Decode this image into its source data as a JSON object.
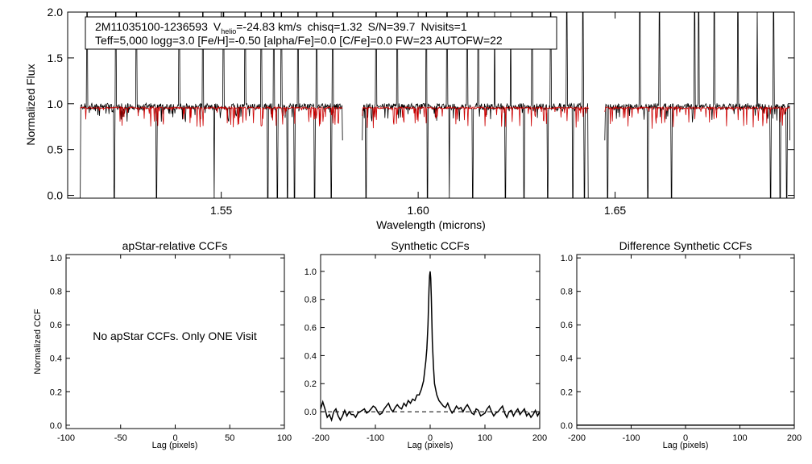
{
  "chart_data": [
    {
      "type": "line",
      "title": "",
      "header_line1": {
        "star": "2M11035100-1236593",
        "v_symbol": "V",
        "v_sub": "helio",
        "v_value": "=-24.83 km/s",
        "chisq": "chisq=1.32",
        "sn": "S/N=39.7",
        "nvisits": "Nvisits=1"
      },
      "header_line2": "Teff=5,000 logg=3.0 [Fe/H]=-0.50 [alpha/Fe]=0.0 [C/Fe]=0.0 FW=23 AUTOFW=22",
      "xlabel": "Wavelength (microns)",
      "ylabel": "Normalized Flux",
      "xlim": [
        1.511,
        1.6955
      ],
      "ylim": [
        -0.03,
        2.0
      ],
      "x_ticks": [
        {
          "value": 1.55,
          "label": "1.55"
        },
        {
          "value": 1.6,
          "label": "1.60"
        },
        {
          "value": 1.65,
          "label": "1.65"
        }
      ],
      "y_ticks": [
        {
          "value": 0.0,
          "label": "0.0"
        },
        {
          "value": 0.5,
          "label": "0.5"
        },
        {
          "value": 1.0,
          "label": "1.0"
        },
        {
          "value": 1.5,
          "label": "1.5"
        },
        {
          "value": 2.0,
          "label": "2.0"
        }
      ],
      "chips": [
        [
          1.5142,
          1.5808
        ],
        [
          1.5858,
          1.6433
        ],
        [
          1.6474,
          1.6944
        ]
      ],
      "series": [
        {
          "role": "observed",
          "color": "#000000",
          "continuum": 0.97
        },
        {
          "role": "model",
          "color": "#cc0000",
          "continuum": 0.955
        }
      ],
      "spikes": [
        1.5159,
        1.5232,
        1.5285,
        1.5335,
        1.5393,
        1.5453,
        1.5506,
        1.5561,
        1.5601,
        1.5633,
        1.5653,
        1.5695,
        1.5742,
        1.5783,
        1.5893,
        1.5947,
        1.6021,
        1.6073,
        1.6124,
        1.6153,
        1.6194,
        1.6235,
        1.6289,
        1.6336,
        1.6377,
        1.6418,
        1.6563,
        1.6613,
        1.6702,
        1.6712,
        1.6752,
        1.6812,
        1.6861,
        1.6903
      ],
      "dips": [
        1.5142,
        1.5228,
        1.5336,
        1.5482,
        1.5618,
        1.5642,
        1.5668,
        1.5686,
        1.5737,
        1.5779,
        1.5868,
        1.6024,
        1.6079,
        1.6138,
        1.6221,
        1.6269,
        1.6329,
        1.6393,
        1.6422,
        1.6432,
        1.6481,
        1.6583,
        1.6643,
        1.6895,
        1.6919,
        1.6936
      ]
    },
    {
      "type": "line",
      "title": "apStar-relative CCFs",
      "xlabel": "Lag (pixels)",
      "ylabel": "Normalized CCF",
      "xlim": [
        -100,
        100
      ],
      "ylim": [
        -0.02,
        1.02
      ],
      "x_ticks": [
        {
          "value": -100,
          "label": "-100"
        },
        {
          "value": -50,
          "label": "-50"
        },
        {
          "value": 0,
          "label": "0"
        },
        {
          "value": 50,
          "label": "50"
        },
        {
          "value": 100,
          "label": "100"
        }
      ],
      "y_ticks": [
        {
          "value": 0.0,
          "label": "0.0"
        },
        {
          "value": 0.2,
          "label": "0.2"
        },
        {
          "value": 0.4,
          "label": "0.4"
        },
        {
          "value": 0.6,
          "label": "0.6"
        },
        {
          "value": 0.8,
          "label": "0.8"
        },
        {
          "value": 1.0,
          "label": "1.0"
        }
      ],
      "note": "No apStar CCFs.  Only ONE Visit",
      "series": []
    },
    {
      "type": "line",
      "title": "Synthetic CCFs",
      "xlabel": "Lag (pixels)",
      "ylabel": "",
      "xlim": [
        -200,
        200
      ],
      "ylim": [
        -0.12,
        1.12
      ],
      "x_ticks": [
        {
          "value": -200,
          "label": "-200"
        },
        {
          "value": -100,
          "label": "-100"
        },
        {
          "value": 0,
          "label": "0"
        },
        {
          "value": 100,
          "label": "100"
        },
        {
          "value": 200,
          "label": "200"
        }
      ],
      "y_ticks": [
        {
          "value": 0.0,
          "label": "0.0"
        },
        {
          "value": 0.2,
          "label": "0.2"
        },
        {
          "value": 0.4,
          "label": "0.4"
        },
        {
          "value": 0.6,
          "label": "0.6"
        },
        {
          "value": 0.8,
          "label": "0.8"
        },
        {
          "value": 1.0,
          "label": "1.0"
        }
      ],
      "zero_line": 0.0,
      "series": [
        {
          "role": "ccf",
          "color": "#000000",
          "x": [
            -200,
            -196,
            -192,
            -188,
            -184,
            -180,
            -176,
            -172,
            -168,
            -164,
            -160,
            -156,
            -152,
            -148,
            -144,
            -140,
            -136,
            -132,
            -128,
            -124,
            -120,
            -116,
            -112,
            -108,
            -104,
            -100,
            -96,
            -92,
            -88,
            -84,
            -80,
            -76,
            -72,
            -68,
            -64,
            -60,
            -56,
            -52,
            -48,
            -44,
            -40,
            -36,
            -32,
            -28,
            -24,
            -20,
            -16,
            -12,
            -8,
            -6,
            -4,
            -2,
            -1,
            0,
            1,
            2,
            4,
            6,
            8,
            12,
            16,
            20,
            24,
            28,
            32,
            36,
            40,
            44,
            48,
            52,
            56,
            60,
            64,
            68,
            72,
            76,
            80,
            84,
            88,
            92,
            96,
            100,
            104,
            108,
            112,
            116,
            120,
            124,
            128,
            132,
            136,
            140,
            144,
            148,
            152,
            156,
            160,
            164,
            168,
            172,
            176,
            180,
            184,
            188,
            192,
            196,
            200
          ],
          "y": [
            0.02,
            0.07,
            0.02,
            -0.04,
            -0.02,
            -0.06,
            0.0,
            0.02,
            -0.03,
            -0.06,
            -0.03,
            0.01,
            -0.03,
            0.0,
            -0.02,
            -0.02,
            -0.04,
            -0.01,
            0.0,
            0.01,
            0.02,
            -0.01,
            0.0,
            0.02,
            0.04,
            0.03,
            0.0,
            -0.02,
            -0.01,
            0.02,
            0.04,
            0.06,
            0.02,
            0.0,
            0.03,
            0.05,
            0.03,
            0.02,
            0.06,
            0.04,
            0.08,
            0.06,
            0.09,
            0.08,
            0.12,
            0.12,
            0.16,
            0.22,
            0.36,
            0.45,
            0.62,
            0.88,
            0.97,
            1.0,
            0.95,
            0.82,
            0.5,
            0.32,
            0.2,
            0.12,
            0.08,
            0.06,
            0.04,
            0.03,
            0.06,
            0.02,
            -0.01,
            0.01,
            0.04,
            0.02,
            0.03,
            0.0,
            0.03,
            0.05,
            0.02,
            -0.01,
            -0.02,
            0.02,
            0.01,
            -0.03,
            -0.02,
            -0.01,
            0.02,
            0.04,
            0.0,
            -0.03,
            -0.01,
            0.0,
            0.02,
            0.04,
            -0.01,
            -0.04,
            0.0,
            0.01,
            -0.03,
            0.0,
            0.02,
            -0.02,
            0.0,
            0.02,
            -0.03,
            -0.01,
            -0.04,
            -0.02,
            0.01,
            -0.03,
            0.0
          ]
        }
      ]
    },
    {
      "type": "line",
      "title": "Difference Synthetic CCFs",
      "xlabel": "Lag (pixels)",
      "ylabel": "",
      "xlim": [
        -200,
        200
      ],
      "ylim": [
        -0.02,
        1.02
      ],
      "x_ticks": [
        {
          "value": -200,
          "label": "-200"
        },
        {
          "value": -100,
          "label": "-100"
        },
        {
          "value": 0,
          "label": "0"
        },
        {
          "value": 100,
          "label": "100"
        },
        {
          "value": 200,
          "label": "200"
        }
      ],
      "y_ticks": [
        {
          "value": 0.0,
          "label": "0.0"
        },
        {
          "value": 0.2,
          "label": "0.2"
        },
        {
          "value": 0.4,
          "label": "0.4"
        },
        {
          "value": 0.6,
          "label": "0.6"
        },
        {
          "value": 0.8,
          "label": "0.8"
        },
        {
          "value": 1.0,
          "label": "1.0"
        }
      ],
      "series": [
        {
          "role": "difference",
          "color": "#000000",
          "x": [
            -200,
            200
          ],
          "y": [
            0.0,
            0.0
          ]
        }
      ]
    }
  ]
}
